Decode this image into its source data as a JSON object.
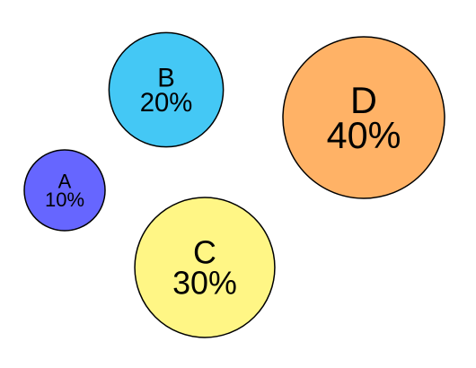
{
  "chart_data": {
    "type": "bubble",
    "title": "",
    "bubbles": [
      {
        "label": "A",
        "value_label": "10%",
        "value": 10,
        "color": "#6666FF"
      },
      {
        "label": "B",
        "value_label": "20%",
        "value": 20,
        "color": "#44C8F5"
      },
      {
        "label": "C",
        "value_label": "30%",
        "value": 30,
        "color": "#FFF685"
      },
      {
        "label": "D",
        "value_label": "40%",
        "value": 40,
        "color": "#FFB266"
      }
    ],
    "stroke_color": "#000000"
  }
}
